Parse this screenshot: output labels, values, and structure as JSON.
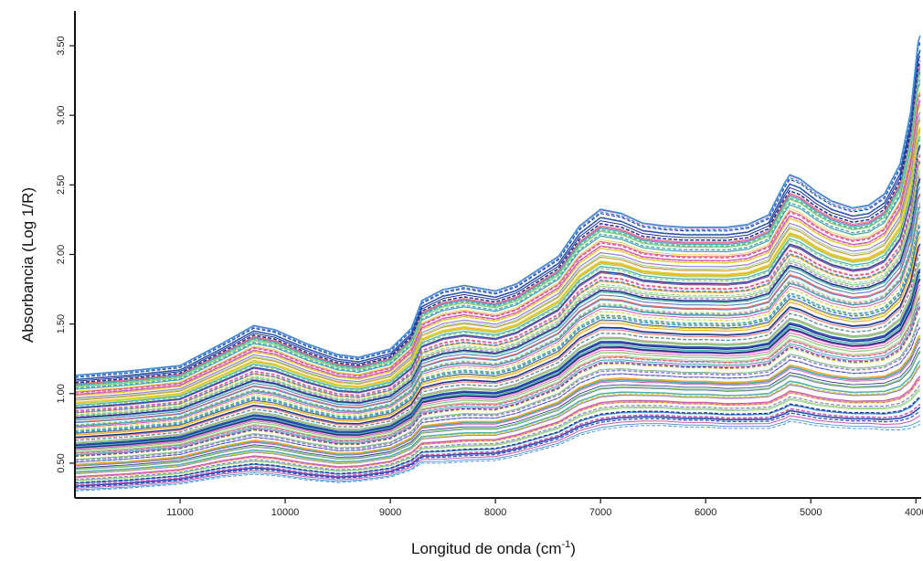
{
  "chart_data": {
    "type": "line",
    "title": "",
    "xlabel": "Longitud de onda (cm",
    "xlabel_superscript": "-1",
    "xlabel_close": ")",
    "ylabel": "Absorbancia (Log 1/R)",
    "x_reversed": true,
    "xlim": [
      12000,
      3950
    ],
    "ylim": [
      0.25,
      3.75
    ],
    "x_ticks": [
      11000,
      10000,
      9000,
      8000,
      7000,
      6000,
      5000,
      4000
    ],
    "x_tick_labels": [
      "11000",
      "10000",
      "9000",
      "8000",
      "7000",
      "6000",
      "5000",
      "4000"
    ],
    "y_ticks": [
      0.5,
      1.0,
      1.5,
      2.0,
      2.5,
      3.0,
      3.5
    ],
    "y_tick_labels": [
      "0.50",
      "1.00",
      "1.50",
      "2.00",
      "2.50",
      "3.00",
      "3.50"
    ],
    "grid": false,
    "legend": "none",
    "series_note_count": 120,
    "palette": [
      "#2b50b8",
      "#f2a81d",
      "#e0d23a",
      "#8fd07e",
      "#d25bb5",
      "#3c8fd6",
      "#f06a6a",
      "#4bb0b0",
      "#9a7fd6",
      "#1f2f8a"
    ],
    "template": {
      "x": [
        12000,
        11500,
        11000,
        10600,
        10300,
        10100,
        9800,
        9500,
        9300,
        9000,
        8800,
        8700,
        8500,
        8300,
        8000,
        7800,
        7400,
        7200,
        7000,
        6800,
        6600,
        6400,
        6200,
        6000,
        5800,
        5600,
        5400,
        5350,
        5250,
        5200,
        5100,
        4950,
        4800,
        4600,
        4450,
        4300,
        4150,
        4050,
        3980,
        3960
      ],
      "lower": [
        0.3,
        0.32,
        0.35,
        0.4,
        0.42,
        0.41,
        0.38,
        0.36,
        0.37,
        0.4,
        0.45,
        0.5,
        0.5,
        0.51,
        0.52,
        0.55,
        0.63,
        0.7,
        0.74,
        0.76,
        0.77,
        0.77,
        0.76,
        0.76,
        0.75,
        0.75,
        0.75,
        0.76,
        0.78,
        0.8,
        0.79,
        0.77,
        0.76,
        0.75,
        0.75,
        0.74,
        0.74,
        0.75,
        0.77,
        0.78
      ],
      "upper": [
        1.14,
        1.17,
        1.21,
        1.37,
        1.5,
        1.47,
        1.37,
        1.29,
        1.27,
        1.33,
        1.48,
        1.68,
        1.76,
        1.79,
        1.75,
        1.8,
        2.0,
        2.22,
        2.34,
        2.31,
        2.24,
        2.22,
        2.21,
        2.21,
        2.21,
        2.23,
        2.3,
        2.38,
        2.53,
        2.59,
        2.56,
        2.47,
        2.4,
        2.35,
        2.37,
        2.45,
        2.67,
        3.05,
        3.55,
        3.6
      ]
    }
  }
}
